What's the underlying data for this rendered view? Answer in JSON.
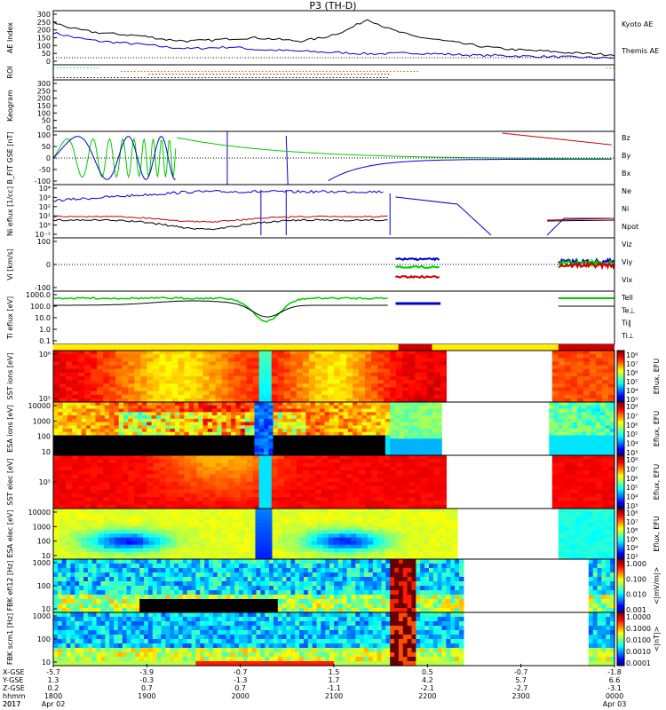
{
  "chart_data": {
    "type": "line",
    "title": "P3 (TH-D)",
    "date_year": "2017",
    "date_start": "Apr 02",
    "date_end": "Apr 03",
    "colors": {
      "blue": "#0000cc",
      "red": "#cc0000",
      "green": "#00cc00",
      "black": "#000000",
      "yellow": "#ffee00"
    },
    "time_axis": {
      "row_labels": [
        "X-GSE",
        "Y-GSE",
        "Z-GSE",
        "hhmm",
        "2017"
      ],
      "ticks": [
        {
          "x": "-5.7",
          "y": "1.3",
          "z": "0.2",
          "t": "1800"
        },
        {
          "x": "-3.9",
          "y": "-0.3",
          "z": "0.7",
          "t": "1900"
        },
        {
          "x": "-0.7",
          "y": "-1.3",
          "z": "0.7",
          "t": "2000"
        },
        {
          "x": "1.5",
          "y": "1.7",
          "z": "-1.1",
          "t": "2100"
        },
        {
          "x": "0.5",
          "y": "4.2",
          "z": "-2.1",
          "t": "2200"
        },
        {
          "x": "-0.7",
          "y": "5.7",
          "z": "-2.7",
          "t": "2300"
        },
        {
          "x": "-1.8",
          "y": "6.6",
          "z": "-3.1",
          "t": "0000"
        }
      ]
    },
    "panels": [
      {
        "id": "ae",
        "ylabel": "AE Index",
        "yticks": [
          "300",
          "250",
          "200",
          "150",
          "100",
          "50",
          "0"
        ],
        "series": [
          {
            "name": "Kyoto AE",
            "color": "#0000cc",
            "values": [
              180,
              150,
              130,
              120,
              110,
              95,
              85,
              90,
              95,
              80,
              75,
              70,
              65,
              60,
              55,
              55,
              60,
              55,
              50,
              45,
              45,
              40,
              38,
              35,
              32,
              30
            ]
          },
          {
            "name": "Themis AE",
            "color": "#000000",
            "values": [
              240,
              200,
              180,
              170,
              160,
              140,
              130,
              135,
              145,
              150,
              140,
              130,
              150,
              190,
              260,
              200,
              160,
              140,
              120,
              100,
              85,
              75,
              70,
              60,
              55,
              50
            ]
          }
        ]
      },
      {
        "id": "roi",
        "ylabel": "ROI"
      },
      {
        "id": "keogram",
        "ylabel": "Keogram",
        "yticks": [
          "300",
          "250",
          "200",
          "150",
          "100",
          "50",
          "0"
        ]
      },
      {
        "id": "bfit",
        "ylabel": "B_FIT GSE [nT]",
        "yticks": [
          "100",
          "50",
          "0",
          "-50",
          "-100"
        ],
        "series": [
          {
            "name": "Bz",
            "color": "#cc0000"
          },
          {
            "name": "By",
            "color": "#00cc00"
          },
          {
            "name": "Bx",
            "color": "#0000cc"
          }
        ]
      },
      {
        "id": "ni",
        "ylabel": "Ni eflux [1/cc]",
        "yticks": [
          "10⁴",
          "10³",
          "10²",
          "10¹",
          "10⁰",
          "10⁻¹"
        ],
        "series": [
          {
            "name": "Ne",
            "color": "#cc0000"
          },
          {
            "name": "Ni",
            "color": "#000000"
          },
          {
            "name": "Npot",
            "color": "#0000cc"
          }
        ]
      },
      {
        "id": "vi",
        "ylabel": "Vi [km/s]",
        "yticks": [
          "100",
          "0",
          "-100"
        ],
        "series": [
          {
            "name": "Viz",
            "color": "#cc0000"
          },
          {
            "name": "Viy",
            "color": "#00cc00"
          },
          {
            "name": "Vix",
            "color": "#0000cc"
          }
        ]
      },
      {
        "id": "ti",
        "ylabel": "Ti eflux [eV]",
        "yticks": [
          "1000.0",
          "100.0",
          "10.0",
          "1.0",
          "0.1"
        ],
        "series": [
          {
            "name": "Tell",
            "color": "#000000"
          },
          {
            "name": "Te⊥",
            "color": "#cc0000"
          },
          {
            "name": "Ti∥",
            "color": "#00cc00"
          },
          {
            "name": "Ti⊥",
            "color": "#0000cc"
          }
        ]
      },
      {
        "id": "sst_i",
        "ylabel": "SST ions [eV]",
        "yticks": [
          "10⁶",
          "10⁵"
        ],
        "cbar": [
          "10⁸",
          "10⁷",
          "10⁶",
          "10⁵",
          "10⁴",
          "10³"
        ],
        "cbar_label": "Eflux, EFU"
      },
      {
        "id": "esa_i",
        "ylabel": "ESA ions [eV]",
        "yticks": [
          "10000",
          "1000",
          "100",
          "10"
        ],
        "cbar": [
          "10⁸",
          "10⁷",
          "10⁶",
          "10⁵",
          "10⁴",
          "10³"
        ],
        "cbar_label": "Eflux, EFU"
      },
      {
        "id": "sst_e",
        "ylabel": "SST elec [eV]",
        "yticks": [
          "10⁵"
        ],
        "cbar": [
          "10⁸",
          "10⁷",
          "10⁶",
          "10⁵",
          "10⁴",
          "10³"
        ],
        "cbar_label": "Eflux, EFU"
      },
      {
        "id": "esa_e",
        "ylabel": "ESA elec [eV]",
        "yticks": [
          "10000",
          "1000",
          "100",
          "10"
        ],
        "cbar": [
          "10⁸",
          "10⁷",
          "10⁶",
          "10⁵",
          "10⁴",
          "10³"
        ],
        "cbar_label": "Eflux, EFU"
      },
      {
        "id": "fbk_e",
        "ylabel": "FBK efi12 [Hz]",
        "yticks": [
          "1000",
          "100",
          "10"
        ],
        "cbar": [
          "1.000",
          "0.100",
          "0.010",
          "0.001"
        ],
        "cbar_label": "<|mV/m|>"
      },
      {
        "id": "fbk_b",
        "ylabel": "FBK scm1 [Hz]",
        "yticks": [
          "1000",
          "100",
          "10"
        ],
        "cbar": [
          "1.0000",
          "0.1000",
          "0.0100",
          "0.0010",
          "0.0001"
        ],
        "cbar_label": "<|nT|>"
      }
    ]
  }
}
